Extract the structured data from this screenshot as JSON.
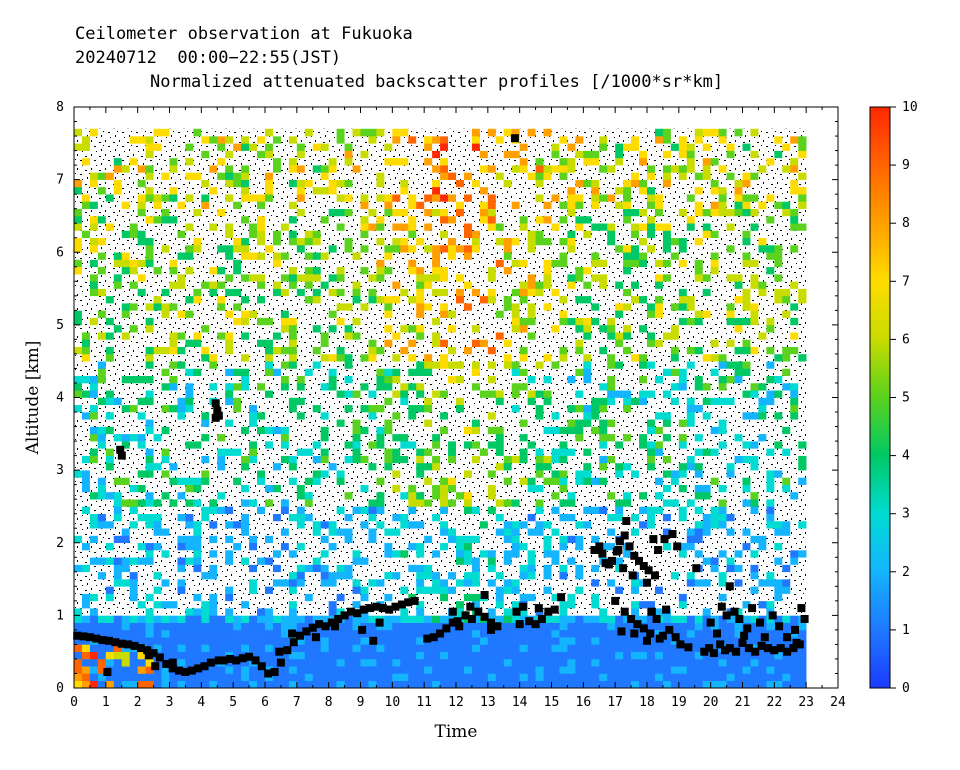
{
  "header": {
    "line1": "Ceilometer observation at Fukuoka",
    "line2": "20240712  00:00−22:55(JST)",
    "line3": "Normalized attenuated backscatter profiles [/1000*sr*km]"
  },
  "chart_data": {
    "type": "heatmap",
    "title": "Normalized attenuated backscatter profiles [/1000*sr*km]",
    "xlabel": "Time",
    "ylabel": "Altitude [km]",
    "xlim": [
      0,
      24
    ],
    "ylim": [
      0,
      8
    ],
    "x_ticks": [
      "0",
      "1",
      "2",
      "3",
      "4",
      "5",
      "6",
      "7",
      "8",
      "9",
      "10",
      "11",
      "12",
      "13",
      "14",
      "15",
      "16",
      "17",
      "18",
      "19",
      "20",
      "21",
      "22",
      "23",
      "24"
    ],
    "y_ticks": [
      "0",
      "1",
      "2",
      "3",
      "4",
      "5",
      "6",
      "7",
      "8"
    ],
    "data_extent": {
      "time_end": 22.92,
      "altitude_top": 7.67
    },
    "colorbar": {
      "range": [
        0,
        10
      ],
      "ticks": [
        "0",
        "1",
        "2",
        "3",
        "4",
        "5",
        "6",
        "7",
        "8",
        "9",
        "10"
      ],
      "colors": [
        "#1b3cff",
        "#1f78ff",
        "#14b4ff",
        "#00dcd2",
        "#00c864",
        "#5ad21e",
        "#c8dc00",
        "#ffdc00",
        "#ffa000",
        "#ff6400",
        "#ff2800"
      ]
    },
    "cloud_base_series": {
      "name": "cloud base",
      "points": [
        [
          0.1,
          0.72
        ],
        [
          0.3,
          0.71
        ],
        [
          0.5,
          0.7
        ],
        [
          0.7,
          0.68
        ],
        [
          0.9,
          0.66
        ],
        [
          1.1,
          0.65
        ],
        [
          1.3,
          0.63
        ],
        [
          1.5,
          0.61
        ],
        [
          1.7,
          0.6
        ],
        [
          1.9,
          0.58
        ],
        [
          2.1,
          0.55
        ],
        [
          2.3,
          0.52
        ],
        [
          2.5,
          0.48
        ],
        [
          2.7,
          0.42
        ],
        [
          2.9,
          0.33
        ],
        [
          3.1,
          0.27
        ],
        [
          3.3,
          0.24
        ],
        [
          3.5,
          0.22
        ],
        [
          3.7,
          0.24
        ],
        [
          3.9,
          0.27
        ],
        [
          4.1,
          0.3
        ],
        [
          4.3,
          0.35
        ],
        [
          4.7,
          0.38
        ],
        [
          4.9,
          0.4
        ],
        [
          5.1,
          0.38
        ],
        [
          5.3,
          0.41
        ],
        [
          5.5,
          0.43
        ],
        [
          5.7,
          0.38
        ],
        [
          5.9,
          0.3
        ],
        [
          6.1,
          0.2
        ],
        [
          6.3,
          0.22
        ],
        [
          6.5,
          0.35
        ],
        [
          6.7,
          0.52
        ],
        [
          6.9,
          0.63
        ],
        [
          7.1,
          0.72
        ],
        [
          7.3,
          0.78
        ],
        [
          7.5,
          0.83
        ],
        [
          7.7,
          0.88
        ],
        [
          7.9,
          0.85
        ],
        [
          8.1,
          0.9
        ],
        [
          8.3,
          0.95
        ],
        [
          8.5,
          1.0
        ],
        [
          8.7,
          1.05
        ],
        [
          8.9,
          1.03
        ],
        [
          9.1,
          1.08
        ],
        [
          9.3,
          1.1
        ],
        [
          9.5,
          1.12
        ],
        [
          9.7,
          1.1
        ],
        [
          9.9,
          1.08
        ],
        [
          10.1,
          1.12
        ],
        [
          10.3,
          1.15
        ],
        [
          10.5,
          1.18
        ],
        [
          10.7,
          1.2
        ],
        [
          1.05,
          0.22
        ],
        [
          2.35,
          0.45
        ],
        [
          2.55,
          0.3
        ],
        [
          3.1,
          0.35
        ],
        [
          4.55,
          0.38
        ],
        [
          6.45,
          0.5
        ],
        [
          6.85,
          0.75
        ],
        [
          7.6,
          0.7
        ],
        [
          8.2,
          0.85
        ],
        [
          9.05,
          0.8
        ],
        [
          9.4,
          0.65
        ],
        [
          9.6,
          0.9
        ],
        [
          11.1,
          0.68
        ],
        [
          11.3,
          0.7
        ],
        [
          11.5,
          0.75
        ],
        [
          11.7,
          0.82
        ],
        [
          11.9,
          0.9
        ],
        [
          12.1,
          0.85
        ],
        [
          12.3,
          1.0
        ],
        [
          12.5,
          0.95
        ],
        [
          12.7,
          1.05
        ],
        [
          12.9,
          0.98
        ],
        [
          13.1,
          0.9
        ],
        [
          13.3,
          0.85
        ],
        [
          12.05,
          0.92
        ],
        [
          12.45,
          1.12
        ],
        [
          12.9,
          1.28
        ],
        [
          13.1,
          0.8
        ],
        [
          11.9,
          1.05
        ],
        [
          13.9,
          1.05
        ],
        [
          14.1,
          1.12
        ],
        [
          14.3,
          0.92
        ],
        [
          14.5,
          0.88
        ],
        [
          14.7,
          0.95
        ],
        [
          14.9,
          1.05
        ],
        [
          15.1,
          1.08
        ],
        [
          15.3,
          1.25
        ],
        [
          14.0,
          0.88
        ],
        [
          14.6,
          1.1
        ],
        [
          16.35,
          1.9
        ],
        [
          16.5,
          1.95
        ],
        [
          16.6,
          1.85
        ],
        [
          16.7,
          1.72
        ],
        [
          16.8,
          1.7
        ],
        [
          16.9,
          1.75
        ],
        [
          17.05,
          1.88
        ],
        [
          17.15,
          2.02
        ],
        [
          17.3,
          2.1
        ],
        [
          17.45,
          1.95
        ],
        [
          17.6,
          1.82
        ],
        [
          17.75,
          1.75
        ],
        [
          17.9,
          1.68
        ],
        [
          18.05,
          1.62
        ],
        [
          18.25,
          1.55
        ],
        [
          17.1,
          1.9
        ],
        [
          17.35,
          2.3
        ],
        [
          17.55,
          1.55
        ],
        [
          18.0,
          1.45
        ],
        [
          18.2,
          2.05
        ],
        [
          18.35,
          1.9
        ],
        [
          18.55,
          2.05
        ],
        [
          18.8,
          2.12
        ],
        [
          18.95,
          1.95
        ],
        [
          17.25,
          1.65
        ],
        [
          17.0,
          1.2
        ],
        [
          17.3,
          1.05
        ],
        [
          17.5,
          0.95
        ],
        [
          17.7,
          0.88
        ],
        [
          17.9,
          0.82
        ],
        [
          18.1,
          0.75
        ],
        [
          18.3,
          0.95
        ],
        [
          18.5,
          0.72
        ],
        [
          18.7,
          0.8
        ],
        [
          18.9,
          0.7
        ],
        [
          17.2,
          0.78
        ],
        [
          17.6,
          0.75
        ],
        [
          18.15,
          1.05
        ],
        [
          18.4,
          0.68
        ],
        [
          19.05,
          0.6
        ],
        [
          19.3,
          0.56
        ],
        [
          18.0,
          0.65
        ],
        [
          18.6,
          1.08
        ],
        [
          19.55,
          1.65
        ],
        [
          19.8,
          0.5
        ],
        [
          19.95,
          0.55
        ],
        [
          20.1,
          0.48
        ],
        [
          20.3,
          0.6
        ],
        [
          20.45,
          0.52
        ],
        [
          20.6,
          0.55
        ],
        [
          20.8,
          0.5
        ],
        [
          21.0,
          0.62
        ],
        [
          21.2,
          0.55
        ],
        [
          21.4,
          0.5
        ],
        [
          21.6,
          0.58
        ],
        [
          21.8,
          0.55
        ],
        [
          22.0,
          0.52
        ],
        [
          22.2,
          0.55
        ],
        [
          22.4,
          0.5
        ],
        [
          22.6,
          0.55
        ],
        [
          22.8,
          0.6
        ],
        [
          20.0,
          0.9
        ],
        [
          20.2,
          0.75
        ],
        [
          20.5,
          1.0
        ],
        [
          20.6,
          1.4
        ],
        [
          20.75,
          1.05
        ],
        [
          20.9,
          0.95
        ],
        [
          21.15,
          0.82
        ],
        [
          21.3,
          1.1
        ],
        [
          21.55,
          0.9
        ],
        [
          21.7,
          0.7
        ],
        [
          21.95,
          1.0
        ],
        [
          22.15,
          0.85
        ],
        [
          22.4,
          0.7
        ],
        [
          22.65,
          0.8
        ],
        [
          22.85,
          1.1
        ],
        [
          22.95,
          0.95
        ],
        [
          20.35,
          1.12
        ],
        [
          21.05,
          0.72
        ],
        [
          22.7,
          0.62
        ],
        [
          4.45,
          3.92
        ],
        [
          4.5,
          3.82
        ],
        [
          4.55,
          3.75
        ],
        [
          4.45,
          3.72
        ],
        [
          1.45,
          3.28
        ],
        [
          1.5,
          3.2
        ],
        [
          13.85,
          7.57
        ]
      ]
    }
  }
}
